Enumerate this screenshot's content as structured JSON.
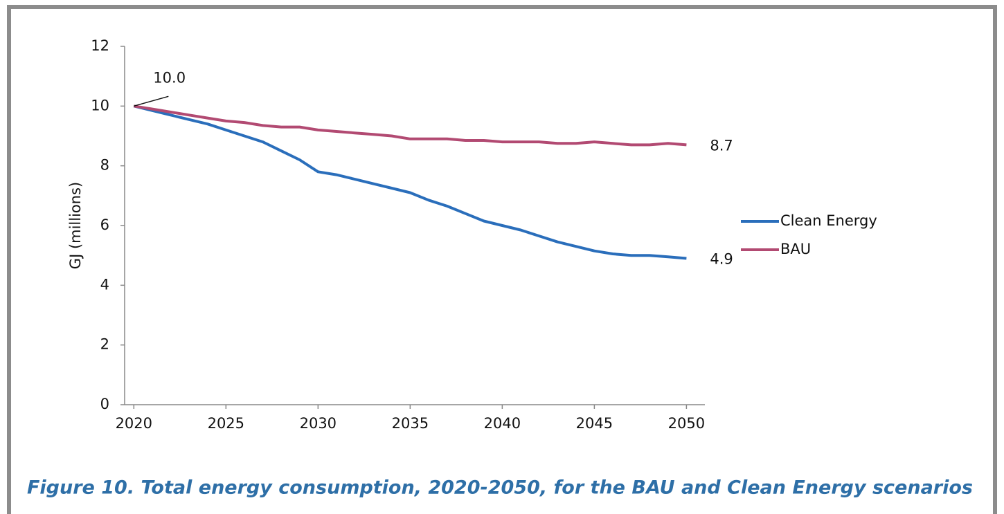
{
  "chart_data": {
    "type": "line",
    "title": "Figure 10. Total energy consumption, 2020-2050, for the BAU and Clean Energy scenarios",
    "y_label": "GJ (millions)",
    "x": [
      2020,
      2021,
      2022,
      2023,
      2024,
      2025,
      2026,
      2027,
      2028,
      2029,
      2030,
      2031,
      2032,
      2033,
      2034,
      2035,
      2036,
      2037,
      2038,
      2039,
      2040,
      2041,
      2042,
      2043,
      2044,
      2045,
      2046,
      2047,
      2048,
      2049,
      2050
    ],
    "series": [
      {
        "name": "Clean Energy",
        "color": "#2a6ebb",
        "values": [
          10.0,
          9.85,
          9.7,
          9.55,
          9.4,
          9.2,
          9.0,
          8.8,
          8.5,
          8.2,
          7.8,
          7.7,
          7.55,
          7.4,
          7.25,
          7.1,
          6.85,
          6.65,
          6.4,
          6.15,
          6.0,
          5.85,
          5.65,
          5.45,
          5.3,
          5.15,
          5.05,
          5.0,
          5.0,
          4.95,
          4.9
        ],
        "value_labels": [
          null,
          null,
          null,
          null,
          null,
          null,
          null,
          null,
          null,
          null,
          null,
          null,
          null,
          null,
          null,
          null,
          null,
          null,
          null,
          null,
          null,
          null,
          null,
          null,
          null,
          null,
          null,
          null,
          null,
          null,
          "4.9"
        ]
      },
      {
        "name": "BAU",
        "color": "#b24a72",
        "values": [
          10.0,
          9.9,
          9.8,
          9.7,
          9.6,
          9.5,
          9.45,
          9.35,
          9.3,
          9.3,
          9.2,
          9.15,
          9.1,
          9.05,
          9.0,
          8.9,
          8.9,
          8.9,
          8.85,
          8.85,
          8.8,
          8.8,
          8.8,
          8.75,
          8.75,
          8.8,
          8.75,
          8.7,
          8.7,
          8.75,
          8.7
        ],
        "value_labels": [
          "10.0",
          null,
          null,
          null,
          null,
          null,
          null,
          null,
          null,
          null,
          null,
          null,
          null,
          null,
          null,
          null,
          null,
          null,
          null,
          null,
          null,
          null,
          null,
          null,
          null,
          null,
          null,
          null,
          null,
          null,
          "8.7"
        ]
      }
    ],
    "xlim": [
      2019.5,
      2051
    ],
    "xticks": [
      2020,
      2025,
      2030,
      2035,
      2040,
      2045,
      2050
    ],
    "ylim": [
      0,
      12
    ],
    "yticks": [
      0,
      2,
      4,
      6,
      8,
      10,
      12
    ],
    "legend": "right"
  }
}
